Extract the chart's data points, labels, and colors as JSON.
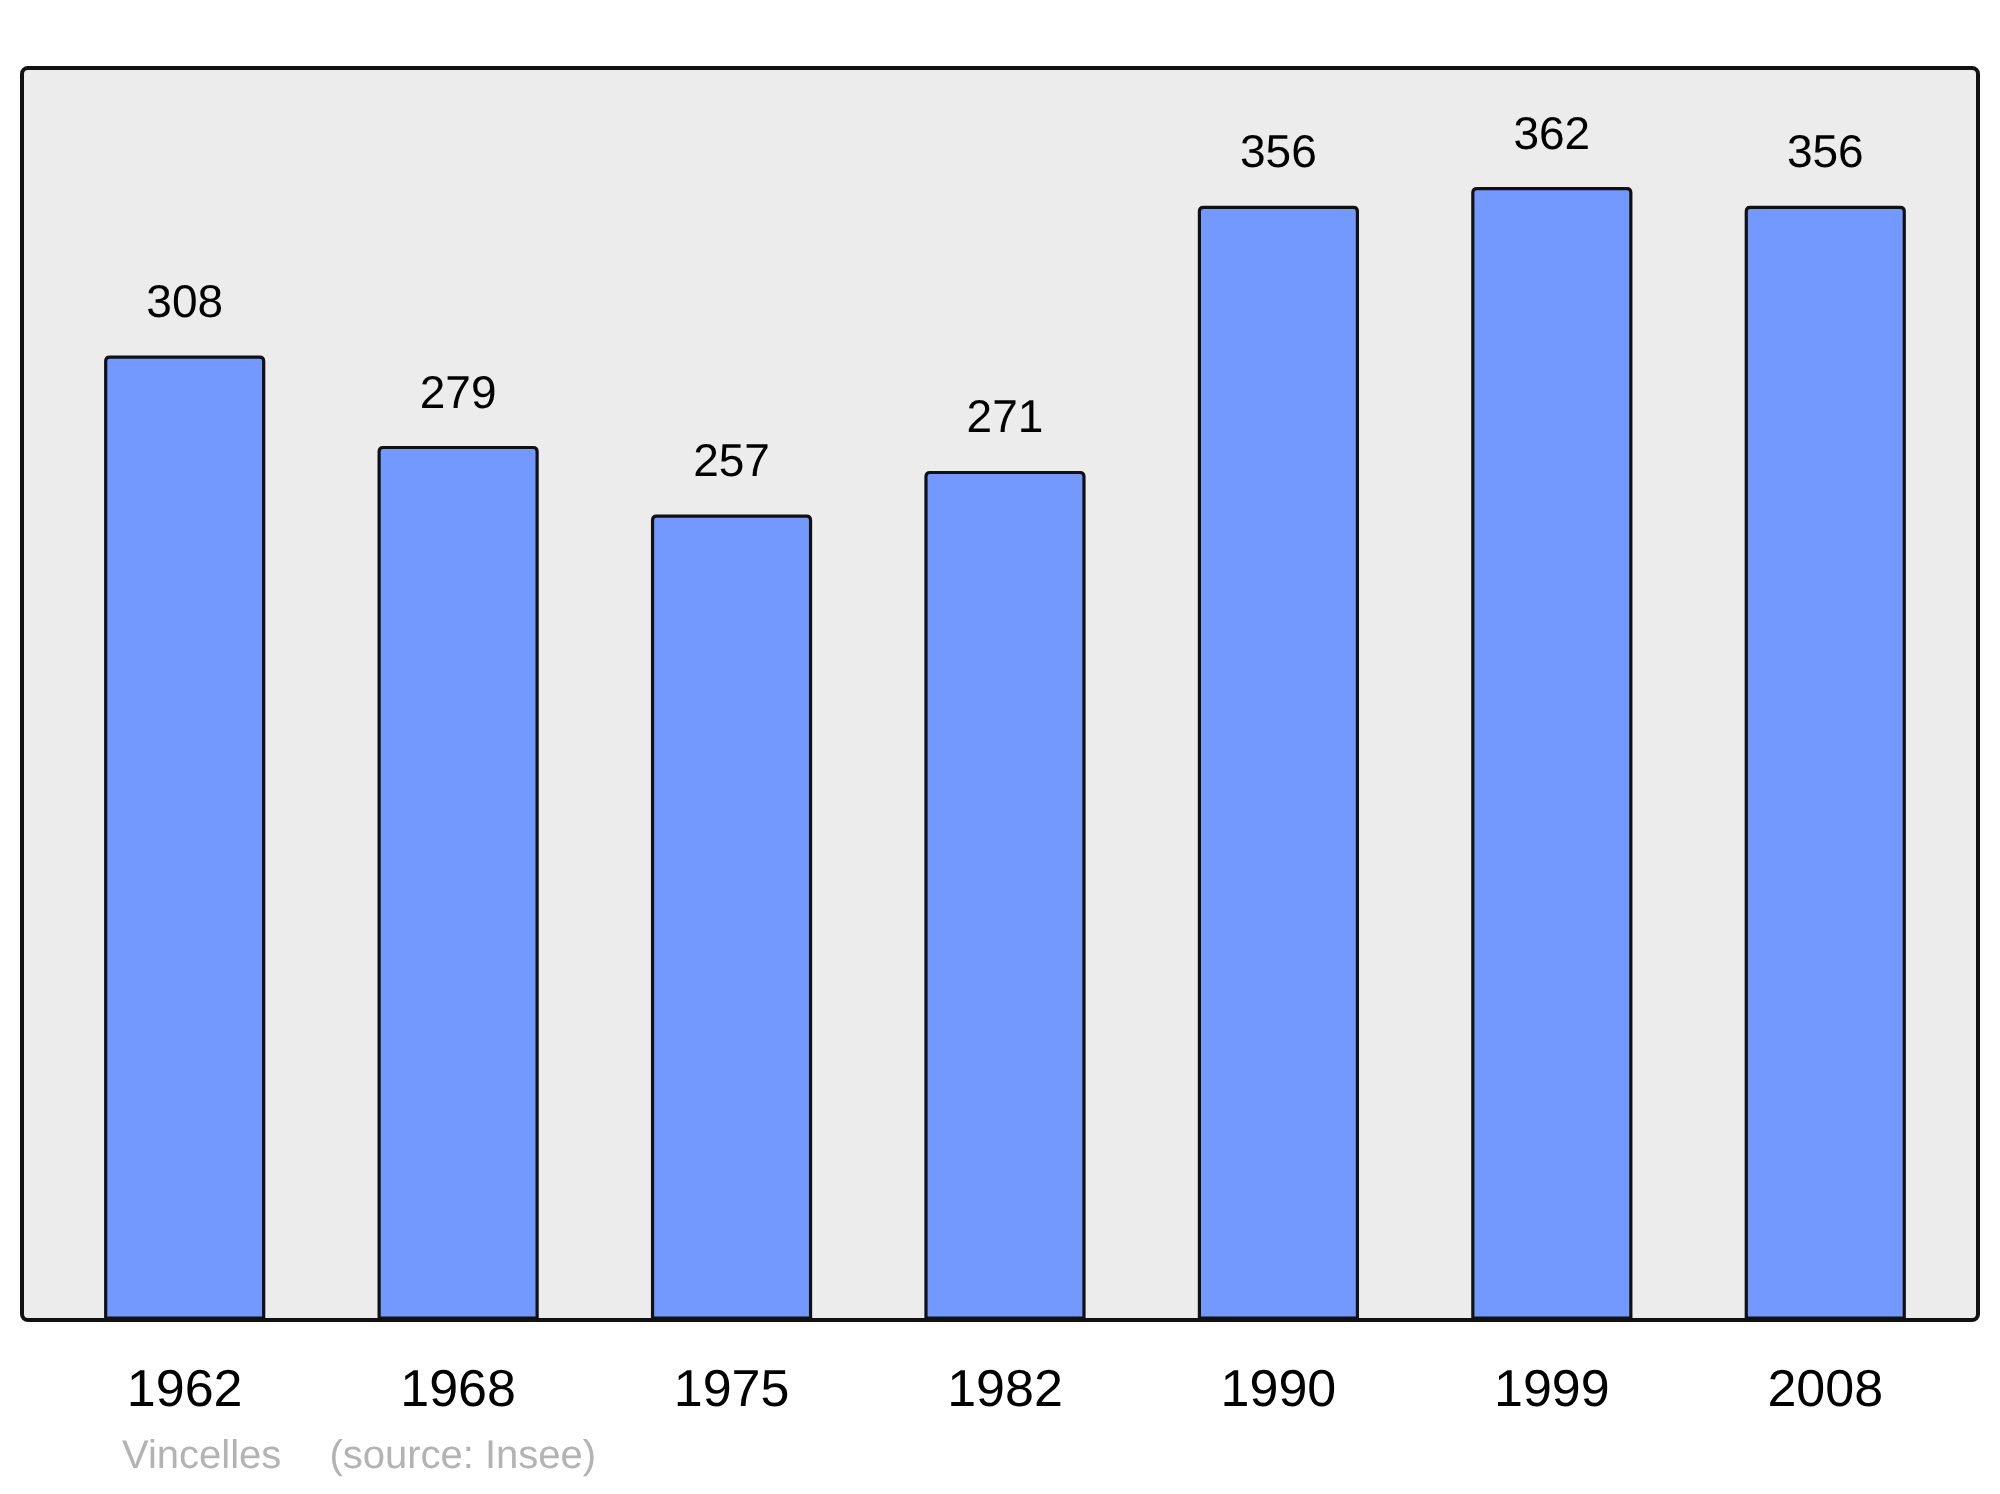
{
  "chart_data": {
    "type": "bar",
    "categories": [
      "1962",
      "1968",
      "1975",
      "1982",
      "1990",
      "1999",
      "2008"
    ],
    "values": [
      308,
      279,
      257,
      271,
      356,
      362,
      356
    ],
    "color": "#7399ff",
    "ylim": [
      0,
      400
    ],
    "data_labels": true,
    "annotations": [
      "Vincelles",
      "(source: Insee)"
    ]
  }
}
